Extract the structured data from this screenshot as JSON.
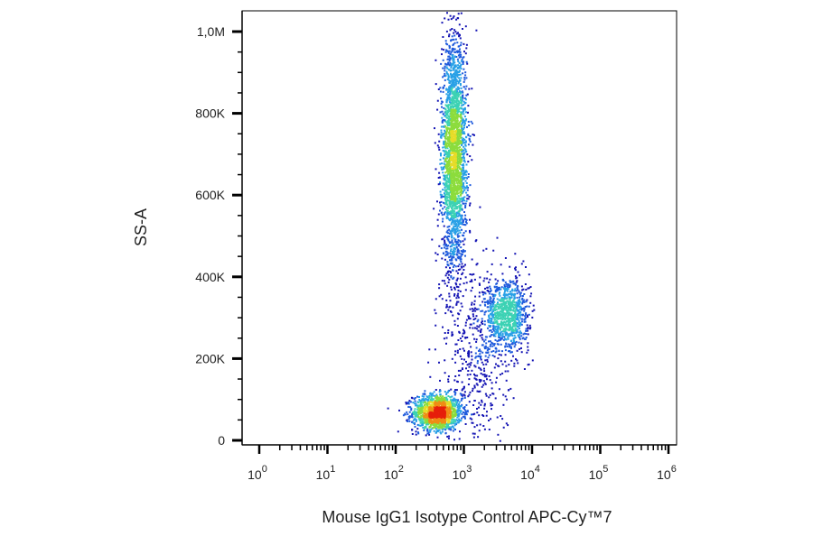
{
  "chart_data": {
    "type": "scatter",
    "subtype": "flow-cytometry density dot plot",
    "xlabel": "Mouse IgG1 Isotype Control APC-Cy™7",
    "ylabel": "SS-A",
    "x_scale": "log",
    "x_range": [
      1,
      1000000
    ],
    "y_range": [
      0,
      1050000
    ],
    "x_ticks": [
      {
        "value": 1,
        "base": "10",
        "exp": "0"
      },
      {
        "value": 10,
        "base": "10",
        "exp": "1"
      },
      {
        "value": 100,
        "base": "10",
        "exp": "2"
      },
      {
        "value": 1000,
        "base": "10",
        "exp": "3"
      },
      {
        "value": 10000,
        "base": "10",
        "exp": "4"
      },
      {
        "value": 100000,
        "base": "10",
        "exp": "5"
      },
      {
        "value": 1000000,
        "base": "10",
        "exp": "6"
      }
    ],
    "y_ticks": [
      {
        "value": 0,
        "label": "0"
      },
      {
        "value": 200000,
        "label": "200K"
      },
      {
        "value": 400000,
        "label": "400K"
      },
      {
        "value": 600000,
        "label": "600K"
      },
      {
        "value": 800000,
        "label": "800K"
      },
      {
        "value": 1000000,
        "label": "1,0M"
      }
    ],
    "populations": [
      {
        "x_center": 400,
        "x_spread_log10": 0.18,
        "y_center": 70000,
        "y_spread": 22000,
        "count": 1400
      },
      {
        "x_center": 700,
        "x_spread_log10": 0.09,
        "y_center": 700000,
        "y_spread": 140000,
        "count": 2600
      },
      {
        "x_center": 4200,
        "x_spread_log10": 0.16,
        "y_center": 310000,
        "y_spread": 45000,
        "count": 900
      },
      {
        "x_center": 1500,
        "x_spread_log10": 0.25,
        "y_center": 220000,
        "y_spread": 120000,
        "count": 450
      }
    ],
    "colormap": [
      "#1414b4",
      "#1e5adc",
      "#28a0e6",
      "#3cd2b4",
      "#8cdc3c",
      "#e6dc28",
      "#f08c14",
      "#e61e0a"
    ],
    "frame": true,
    "grid": false,
    "legend": "none"
  }
}
